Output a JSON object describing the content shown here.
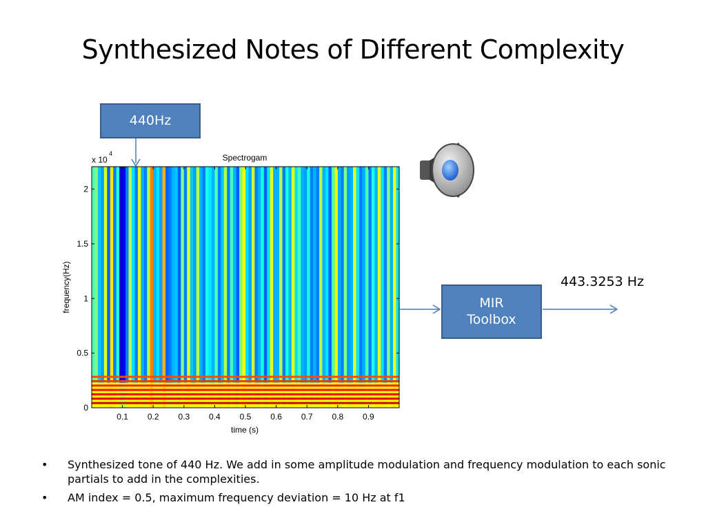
{
  "slide": {
    "title": "Synthesized Notes of Different Complexity",
    "input_box": "440Hz",
    "toolbox_box": [
      "MIR",
      "Toolbox"
    ],
    "result": "443.3253 Hz",
    "bullets": [
      "Synthesized tone of 440 Hz. We add in some amplitude modulation and frequency modulation to each sonic partials to add in the complexities.",
      "AM index = 0.5, maximum frequency deviation  = 10 Hz at f1"
    ],
    "icons": [
      "speaker-icon",
      "bullet-dot-icon",
      "arrow-icon"
    ]
  },
  "chart_data": {
    "type": "heatmap",
    "title": "Spectrogam",
    "xlabel": "time (s)",
    "ylabel": "frequency(Hz)",
    "y_multiplier": "x 10",
    "y_exponent": "4",
    "xlim": [
      0,
      1.0
    ],
    "ylim": [
      0,
      22050
    ],
    "xticks": [
      "0.1",
      "0.2",
      "0.3",
      "0.4",
      "0.5",
      "0.6",
      "0.7",
      "0.8",
      "0.9"
    ],
    "yticks": [
      "0",
      "0.5",
      "1",
      "1.5",
      "2"
    ],
    "colormap": "jet",
    "time_frame_intensity_high_band": [
      0.45,
      0.5,
      0.32,
      0.28,
      0.6,
      0.22,
      0.65,
      0.25,
      0.42,
      0.08,
      0.12,
      0.25,
      0.55,
      0.35,
      0.25,
      0.6,
      0.3,
      0.25,
      0.55,
      0.75,
      0.3,
      0.35,
      0.28,
      0.7,
      0.22,
      0.25,
      0.3,
      0.32,
      0.22,
      0.5,
      0.25,
      0.6,
      0.32,
      0.28,
      0.55,
      0.3,
      0.25,
      0.4,
      0.35,
      0.3,
      0.45,
      0.25,
      0.32,
      0.55,
      0.25,
      0.45,
      0.3,
      0.22,
      0.5,
      0.62,
      0.35,
      0.28,
      0.58,
      0.25,
      0.3,
      0.4,
      0.22,
      0.35,
      0.6,
      0.3,
      0.3,
      0.55,
      0.25,
      0.4,
      0.3,
      0.6,
      0.35,
      0.45,
      0.3,
      0.28,
      0.4,
      0.25,
      0.3,
      0.25,
      0.55,
      0.3,
      0.35,
      0.22,
      0.45,
      0.62,
      0.3,
      0.25,
      0.5,
      0.28,
      0.3,
      0.6,
      0.35,
      0.25,
      0.3,
      0.45,
      0.25,
      0.4,
      0.3,
      0.6,
      0.35,
      0.25,
      0.5,
      0.3,
      0.62,
      0.35
    ],
    "harmonic_rows_hz": [
      400,
      800,
      1200,
      1600,
      2000,
      2400,
      2800
    ]
  }
}
